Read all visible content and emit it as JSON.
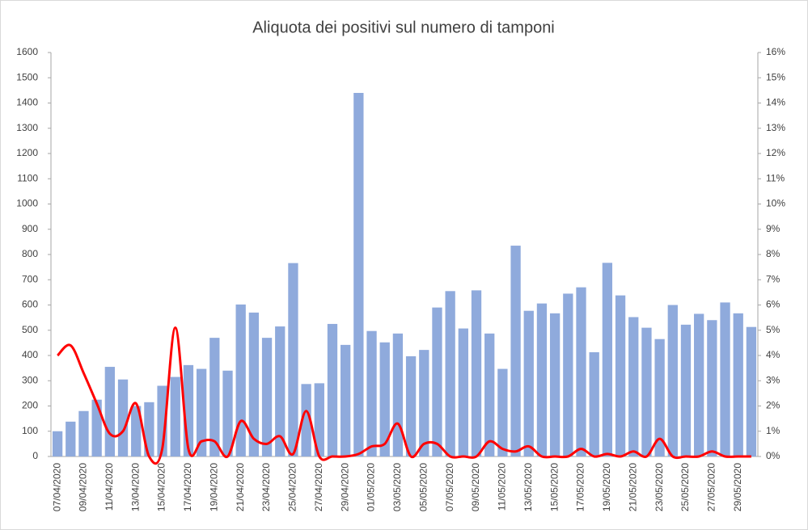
{
  "chart_data": {
    "type": "bar_line",
    "title": "Aliquota dei positivi sul numero di tamponi",
    "categories": [
      "07/04/2020",
      null,
      "09/04/2020",
      null,
      "11/04/2020",
      null,
      "13/04/2020",
      null,
      "15/04/2020",
      null,
      "17/04/2020",
      null,
      "19/04/2020",
      null,
      "21/04/2020",
      null,
      "23/04/2020",
      null,
      "25/04/2020",
      null,
      "27/04/2020",
      null,
      "29/04/2020",
      null,
      "01/05/2020",
      null,
      "03/05/2020",
      null,
      "05/05/2020",
      null,
      "07/05/2020",
      null,
      "09/05/2020",
      null,
      "11/05/2020",
      null,
      "13/05/2020",
      null,
      "15/05/2020",
      null,
      "17/05/2020",
      null,
      "19/05/2020",
      null,
      "21/05/2020",
      null,
      "23/05/2020",
      null,
      "25/05/2020",
      null,
      "27/05/2020",
      null,
      "29/05/2020",
      null
    ],
    "series": [
      {
        "type": "bar",
        "color": "#8faadc",
        "values": [
          100,
          138,
          180,
          225,
          355,
          305,
          200,
          215,
          280,
          315,
          362,
          347,
          470,
          340,
          602,
          570,
          470,
          515,
          766,
          287,
          290,
          525,
          442,
          1440,
          497,
          452,
          487,
          397,
          422,
          590,
          655,
          507,
          658,
          487,
          347,
          835,
          577,
          606,
          567,
          645,
          670,
          413,
          767,
          638,
          552,
          510,
          465,
          600,
          522,
          565,
          540,
          610,
          567,
          513
        ]
      },
      {
        "type": "line",
        "axis": "y2",
        "color": "#ff0000",
        "values": [
          4.0,
          4.4,
          3.3,
          2.1,
          0.9,
          1.0,
          2.1,
          0,
          0.3,
          5.1,
          0.3,
          0.6,
          0.6,
          0,
          1.4,
          0.7,
          0.5,
          0.8,
          0.1,
          1.8,
          0,
          0,
          0,
          0.1,
          0.4,
          0.5,
          1.3,
          0,
          0.5,
          0.5,
          0,
          0,
          0,
          0.6,
          0.3,
          0.2,
          0.4,
          0,
          0,
          0,
          0.3,
          0,
          0.1,
          0,
          0.2,
          0,
          0.7,
          0,
          0,
          0,
          0.2,
          0,
          0,
          0
        ]
      }
    ],
    "ylim": [
      0,
      1600
    ],
    "yticks": [
      0,
      100,
      200,
      300,
      400,
      500,
      600,
      700,
      800,
      900,
      1000,
      1100,
      1200,
      1300,
      1400,
      1500,
      1600
    ],
    "y2lim": [
      0,
      16
    ],
    "y2ticks": [
      {
        "value": 0,
        "label": "0%"
      },
      {
        "value": 1,
        "label": "1%"
      },
      {
        "value": 2,
        "label": "2%"
      },
      {
        "value": 3,
        "label": "3%"
      },
      {
        "value": 4,
        "label": "4%"
      },
      {
        "value": 5,
        "label": "5%"
      },
      {
        "value": 6,
        "label": "6%"
      },
      {
        "value": 7,
        "label": "7%"
      },
      {
        "value": 8,
        "label": "8%"
      },
      {
        "value": 9,
        "label": "9%"
      },
      {
        "value": 10,
        "label": "10%"
      },
      {
        "value": 11,
        "label": "11%"
      },
      {
        "value": 12,
        "label": "12%"
      },
      {
        "value": 13,
        "label": "13%"
      },
      {
        "value": 14,
        "label": "14%"
      },
      {
        "value": 15,
        "label": "15%"
      },
      {
        "value": 16,
        "label": "16%"
      }
    ],
    "grid": false
  }
}
